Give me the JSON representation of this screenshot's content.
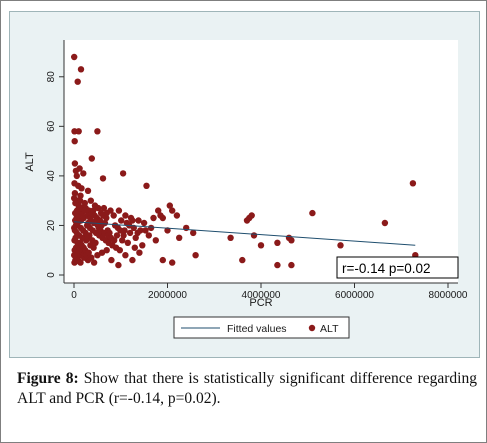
{
  "caption": {
    "label": "Figure 8:",
    "text": "Show that there is statistically significant difference regarding ALT and PCR (r=-0.14, p=0.02)."
  },
  "chart_data": {
    "type": "scatter",
    "xlabel": "PCR",
    "ylabel": "ALT",
    "xlim": [
      0,
      8000000
    ],
    "ylim": [
      0,
      90
    ],
    "x_ticks": [
      {
        "value": 0,
        "label": "0"
      },
      {
        "value": 2000000,
        "label": "2000000"
      },
      {
        "value": 4000000,
        "label": "4000000"
      },
      {
        "value": 6000000,
        "label": "6000000"
      },
      {
        "value": 8000000,
        "label": "8000000"
      }
    ],
    "y_ticks": [
      {
        "value": 0,
        "label": "0"
      },
      {
        "value": 20,
        "label": "20"
      },
      {
        "value": 40,
        "label": "40"
      },
      {
        "value": 60,
        "label": "60"
      },
      {
        "value": 80,
        "label": "80"
      }
    ],
    "grid": false,
    "legend_position": "bottom",
    "annotation": "r=-0.14  p=0.02",
    "fit_line": {
      "name": "Fitted values",
      "x": [
        0,
        7300000
      ],
      "y": [
        21.5,
        12.0
      ],
      "color": "#1f4e6e"
    },
    "series": [
      {
        "name": "ALT",
        "color": "#8b1a1a",
        "points": [
          [
            5000,
            88
          ],
          [
            150000,
            83
          ],
          [
            80000,
            78
          ],
          [
            10000,
            58
          ],
          [
            100000,
            58
          ],
          [
            500000,
            58
          ],
          [
            15000,
            54
          ],
          [
            380000,
            47
          ],
          [
            20000,
            45
          ],
          [
            120000,
            43
          ],
          [
            40000,
            42
          ],
          [
            200000,
            41
          ],
          [
            1050000,
            41
          ],
          [
            60000,
            40
          ],
          [
            620000,
            39
          ],
          [
            10000,
            37
          ],
          [
            90000,
            36
          ],
          [
            160000,
            35
          ],
          [
            1550000,
            36
          ],
          [
            300000,
            34
          ],
          [
            20000,
            33
          ],
          [
            140000,
            32
          ],
          [
            7250000,
            37
          ],
          [
            5000,
            31
          ],
          [
            60000,
            30
          ],
          [
            130000,
            30
          ],
          [
            230000,
            29
          ],
          [
            360000,
            30
          ],
          [
            450000,
            28
          ],
          [
            520000,
            27
          ],
          [
            640000,
            27
          ],
          [
            780000,
            26
          ],
          [
            30000,
            29
          ],
          [
            100000,
            28
          ],
          [
            170000,
            27
          ],
          [
            250000,
            27
          ],
          [
            320000,
            26
          ],
          [
            410000,
            26
          ],
          [
            580000,
            25
          ],
          [
            700000,
            25
          ],
          [
            850000,
            24
          ],
          [
            960000,
            26
          ],
          [
            1100000,
            24
          ],
          [
            1250000,
            22
          ],
          [
            1380000,
            22
          ],
          [
            1500000,
            21
          ],
          [
            1700000,
            23
          ],
          [
            1800000,
            26
          ],
          [
            1850000,
            24
          ],
          [
            1900000,
            23
          ],
          [
            2050000,
            28
          ],
          [
            2100000,
            26
          ],
          [
            2200000,
            24
          ],
          [
            2400000,
            19
          ],
          [
            2550000,
            17
          ],
          [
            3350000,
            15
          ],
          [
            3700000,
            22
          ],
          [
            3750000,
            23
          ],
          [
            3800000,
            24
          ],
          [
            3850000,
            16
          ],
          [
            4000000,
            12
          ],
          [
            4350000,
            13
          ],
          [
            4600000,
            15
          ],
          [
            4650000,
            14
          ],
          [
            5100000,
            25
          ],
          [
            5700000,
            12
          ],
          [
            6650000,
            21
          ],
          [
            7300000,
            8
          ],
          [
            3600000,
            6
          ],
          [
            4350000,
            4
          ],
          [
            4650000,
            4
          ],
          [
            2100000,
            5
          ],
          [
            1900000,
            6
          ],
          [
            1250000,
            6
          ],
          [
            1100000,
            8
          ],
          [
            950000,
            4
          ],
          [
            800000,
            6
          ],
          [
            700000,
            10
          ],
          [
            600000,
            9
          ],
          [
            500000,
            8
          ],
          [
            420000,
            11
          ],
          [
            350000,
            12
          ],
          [
            260000,
            14
          ],
          [
            180000,
            15
          ],
          [
            110000,
            16
          ],
          [
            60000,
            17
          ],
          [
            20000,
            18
          ],
          [
            5000,
            19
          ],
          [
            40000,
            20
          ],
          [
            80000,
            21
          ],
          [
            150000,
            22
          ],
          [
            210000,
            23
          ],
          [
            280000,
            20
          ],
          [
            340000,
            19
          ],
          [
            400000,
            18
          ],
          [
            470000,
            17
          ],
          [
            540000,
            16
          ],
          [
            610000,
            15
          ],
          [
            680000,
            14
          ],
          [
            740000,
            13
          ],
          [
            820000,
            12
          ],
          [
            900000,
            11
          ],
          [
            980000,
            10
          ],
          [
            1030000,
            14
          ],
          [
            1150000,
            13
          ],
          [
            1200000,
            17
          ],
          [
            1320000,
            15
          ],
          [
            1420000,
            18
          ],
          [
            1460000,
            12
          ],
          [
            1600000,
            16
          ],
          [
            1650000,
            19
          ],
          [
            1750000,
            14
          ],
          [
            2000000,
            18
          ],
          [
            2250000,
            15
          ],
          [
            2600000,
            8
          ],
          [
            10000,
            5
          ],
          [
            30000,
            6
          ],
          [
            70000,
            7
          ],
          [
            120000,
            8
          ],
          [
            190000,
            9
          ],
          [
            240000,
            10
          ],
          [
            300000,
            6
          ],
          [
            370000,
            7
          ],
          [
            430000,
            5
          ],
          [
            15000,
            10
          ],
          [
            45000,
            11
          ],
          [
            85000,
            12
          ],
          [
            135000,
            13
          ],
          [
            205000,
            11
          ],
          [
            275000,
            15
          ],
          [
            330000,
            16
          ],
          [
            390000,
            14
          ],
          [
            460000,
            13
          ],
          [
            530000,
            19
          ],
          [
            590000,
            20
          ],
          [
            660000,
            21
          ],
          [
            720000,
            18
          ],
          [
            760000,
            17
          ],
          [
            880000,
            20
          ],
          [
            940000,
            19
          ],
          [
            1010000,
            22
          ],
          [
            1080000,
            18
          ],
          [
            1180000,
            20
          ],
          [
            1280000,
            19
          ],
          [
            1360000,
            17
          ],
          [
            1530000,
            18
          ],
          [
            25000,
            22
          ],
          [
            55000,
            23
          ],
          [
            95000,
            24
          ],
          [
            175000,
            25
          ],
          [
            225000,
            26
          ],
          [
            295000,
            24
          ],
          [
            355000,
            22
          ],
          [
            425000,
            21
          ],
          [
            490000,
            23
          ],
          [
            555000,
            22
          ],
          [
            625000,
            24
          ],
          [
            690000,
            23
          ],
          [
            10000,
            14
          ],
          [
            35000,
            15
          ],
          [
            75000,
            13
          ],
          [
            115000,
            10
          ],
          [
            165000,
            12
          ],
          [
            5000,
            8
          ],
          [
            50000,
            9
          ],
          [
            90000,
            6
          ],
          [
            140000,
            5
          ],
          [
            215000,
            7
          ],
          [
            265000,
            8
          ],
          [
            315000,
            9
          ],
          [
            25000,
            25
          ],
          [
            65000,
            26
          ],
          [
            105000,
            27
          ],
          [
            145000,
            19
          ],
          [
            195000,
            18
          ],
          [
            245000,
            17
          ],
          [
            285000,
            16
          ],
          [
            305000,
            21
          ],
          [
            345000,
            23
          ],
          [
            385000,
            25
          ],
          [
            440000,
            24
          ],
          [
            480000,
            22
          ],
          [
            510000,
            20
          ],
          [
            570000,
            18
          ],
          [
            650000,
            17
          ],
          [
            730000,
            16
          ],
          [
            790000,
            15
          ],
          [
            860000,
            14
          ],
          [
            920000,
            16
          ],
          [
            990000,
            18
          ],
          [
            1060000,
            16
          ],
          [
            1130000,
            21
          ],
          [
            1220000,
            23
          ],
          [
            1300000,
            11
          ],
          [
            1400000,
            9
          ]
        ]
      }
    ]
  }
}
